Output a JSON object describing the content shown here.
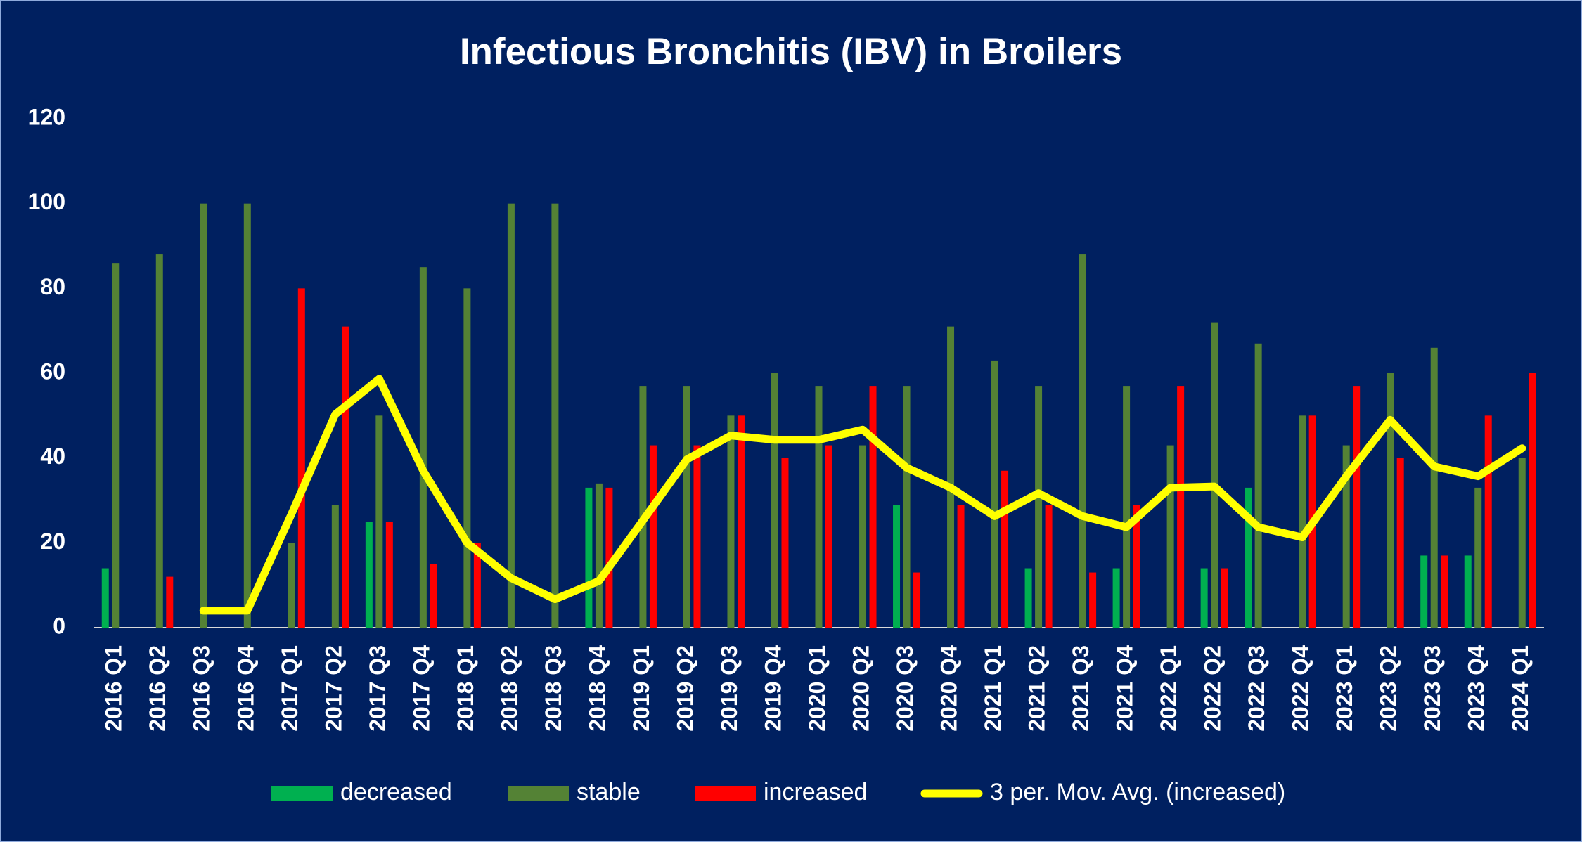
{
  "chart_data": {
    "type": "bar",
    "title": "Infectious Bronchitis (IBV) in Broilers",
    "categories": [
      "2016 Q1",
      "2016 Q2",
      "2016 Q3",
      "2016 Q4",
      "2017 Q1",
      "2017 Q2",
      "2017 Q3",
      "2017 Q4",
      "2018 Q1",
      "2018 Q2",
      "2018 Q3",
      "2018 Q4",
      "2019 Q1",
      "2019 Q2",
      "2019 Q3",
      "2019 Q4",
      "2020 Q1",
      "2020 Q2",
      "2020 Q3",
      "2020 Q4",
      "2021 Q1",
      "2021 Q2",
      "2021 Q3",
      "2021 Q4",
      "2022 Q1",
      "2022 Q2",
      "2022 Q3",
      "2022 Q4",
      "2023 Q1",
      "2023 Q2",
      "2023 Q3",
      "2023 Q4",
      "2024 Q1"
    ],
    "series": [
      {
        "name": "decreased",
        "color": "#00b050",
        "values": [
          14,
          null,
          null,
          null,
          null,
          null,
          25,
          null,
          null,
          null,
          null,
          33,
          null,
          null,
          null,
          null,
          null,
          null,
          29,
          null,
          null,
          14,
          null,
          14,
          null,
          14,
          33,
          null,
          null,
          null,
          17,
          17,
          null
        ]
      },
      {
        "name": "stable",
        "color": "#548235",
        "values": [
          86,
          88,
          100,
          100,
          20,
          29,
          50,
          85,
          80,
          100,
          100,
          34,
          57,
          57,
          50,
          60,
          57,
          43,
          57,
          71,
          63,
          57,
          88,
          57,
          43,
          72,
          67,
          50,
          43,
          60,
          66,
          33,
          40
        ]
      },
      {
        "name": "increased",
        "color": "#ff0000",
        "values": [
          null,
          12,
          null,
          null,
          80,
          71,
          25,
          15,
          20,
          null,
          null,
          33,
          43,
          43,
          50,
          40,
          43,
          57,
          13,
          29,
          37,
          29,
          13,
          29,
          57,
          14,
          null,
          50,
          57,
          40,
          17,
          50,
          60
        ]
      },
      {
        "name": "3 per. Mov. Avg. (increased)",
        "type": "line",
        "color": "#ffff00",
        "values": [
          null,
          null,
          4,
          4,
          26.7,
          50.3,
          58.7,
          37,
          20,
          11.7,
          6.7,
          11,
          25.3,
          39.7,
          45.3,
          44.3,
          44.3,
          46.7,
          37.7,
          33,
          26.3,
          31.7,
          26.3,
          23.7,
          33,
          33.3,
          23.7,
          21.3,
          35.7,
          49,
          38,
          35.7,
          42.3
        ]
      }
    ],
    "ylim": [
      0,
      120
    ],
    "yticks": [
      0,
      20,
      40,
      60,
      80,
      100,
      120
    ],
    "grid": false,
    "legend": "bottom"
  }
}
